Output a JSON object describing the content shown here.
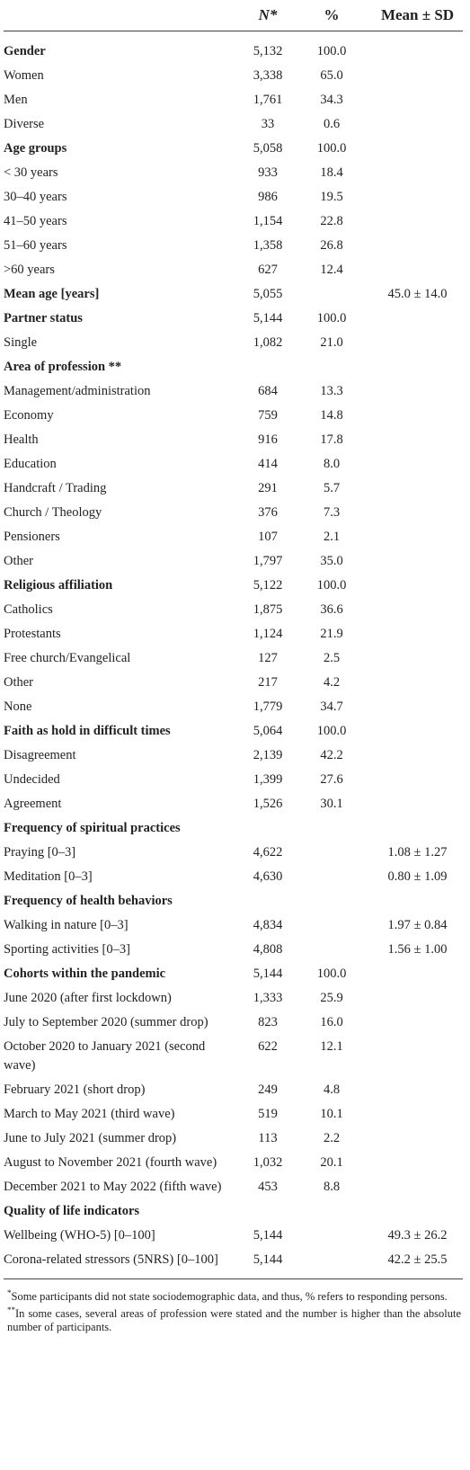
{
  "table": {
    "columns": [
      "N*",
      "%",
      "Mean ± SD"
    ],
    "sections": [
      {
        "title": "Gender",
        "n": "5,132",
        "pct": "100.0",
        "rows": [
          {
            "label": "Women",
            "n": "3,338",
            "pct": "65.0"
          },
          {
            "label": "Men",
            "n": "1,761",
            "pct": "34.3"
          },
          {
            "label": "Diverse",
            "n": "33",
            "pct": "0.6"
          }
        ]
      },
      {
        "title": "Age groups",
        "n": "5,058",
        "pct": "100.0",
        "rows": [
          {
            "label": "< 30 years",
            "n": "933",
            "pct": "18.4"
          },
          {
            "label": "30–40 years",
            "n": "986",
            "pct": "19.5"
          },
          {
            "label": "41–50 years",
            "n": "1,154",
            "pct": "22.8"
          },
          {
            "label": "51–60 years",
            "n": "1,358",
            "pct": "26.8"
          },
          {
            "label": ">60 years",
            "n": "627",
            "pct": "12.4"
          }
        ]
      },
      {
        "title": "Mean age [years]",
        "n": "5,055",
        "mean": "45.0 ± 14.0",
        "rows": []
      },
      {
        "title": "Partner status",
        "n": "5,144",
        "pct": "100.0",
        "rows": [
          {
            "label": "Single",
            "n": "1,082",
            "pct": "21.0"
          }
        ]
      },
      {
        "title": "Area of profession **",
        "rows": [
          {
            "label": "Management/administration",
            "n": "684",
            "pct": "13.3"
          },
          {
            "label": "Economy",
            "n": "759",
            "pct": "14.8"
          },
          {
            "label": "Health",
            "n": "916",
            "pct": "17.8"
          },
          {
            "label": "Education",
            "n": "414",
            "pct": "8.0"
          },
          {
            "label": "Handcraft / Trading",
            "n": "291",
            "pct": "5.7"
          },
          {
            "label": "Church / Theology",
            "n": "376",
            "pct": "7.3"
          },
          {
            "label": "Pensioners",
            "n": "107",
            "pct": "2.1"
          },
          {
            "label": "Other",
            "n": "1,797",
            "pct": "35.0"
          }
        ]
      },
      {
        "title": "Religious affiliation",
        "n": "5,122",
        "pct": "100.0",
        "rows": [
          {
            "label": "Catholics",
            "n": "1,875",
            "pct": "36.6"
          },
          {
            "label": "Protestants",
            "n": "1,124",
            "pct": "21.9"
          },
          {
            "label": "Free church/Evangelical",
            "n": "127",
            "pct": "2.5"
          },
          {
            "label": "Other",
            "n": "217",
            "pct": "4.2"
          },
          {
            "label": "None",
            "n": "1,779",
            "pct": "34.7"
          }
        ]
      },
      {
        "title": "Faith as hold in difficult times",
        "n": "5,064",
        "pct": "100.0",
        "rows": [
          {
            "label": "Disagreement",
            "n": "2,139",
            "pct": "42.2"
          },
          {
            "label": "Undecided",
            "n": "1,399",
            "pct": "27.6"
          },
          {
            "label": "Agreement",
            "n": "1,526",
            "pct": "30.1"
          }
        ]
      },
      {
        "title": "Frequency of spiritual practices",
        "rows": [
          {
            "label": "Praying [0–3]",
            "n": "4,622",
            "mean": "1.08 ± 1.27"
          },
          {
            "label": "Meditation [0–3]",
            "n": "4,630",
            "mean": "0.80 ± 1.09"
          }
        ]
      },
      {
        "title": "Frequency of health behaviors",
        "rows": [
          {
            "label": "Walking in nature [0–3]",
            "n": "4,834",
            "mean": "1.97 ± 0.84"
          },
          {
            "label": "Sporting activities [0–3]",
            "n": "4,808",
            "mean": "1.56 ± 1.00"
          }
        ]
      },
      {
        "title": "Cohorts within the pandemic",
        "n": "5,144",
        "pct": "100.0",
        "rows": [
          {
            "label": "June 2020 (after first lockdown)",
            "n": "1,333",
            "pct": "25.9"
          },
          {
            "label": "July to September 2020 (summer drop)",
            "n": "823",
            "pct": "16.0"
          },
          {
            "label": "October 2020 to January 2021 (second wave)",
            "n": "622",
            "pct": "12.1"
          },
          {
            "label": "February 2021 (short drop)",
            "n": "249",
            "pct": "4.8"
          },
          {
            "label": "March to May 2021 (third wave)",
            "n": "519",
            "pct": "10.1"
          },
          {
            "label": "June to July 2021 (summer drop)",
            "n": "113",
            "pct": "2.2"
          },
          {
            "label": "August to November 2021 (fourth wave)",
            "n": "1,032",
            "pct": "20.1"
          },
          {
            "label": "December 2021 to May 2022 (fifth wave)",
            "n": "453",
            "pct": "8.8"
          }
        ]
      },
      {
        "title": "Quality of life indicators",
        "rows": [
          {
            "label": "Wellbeing (WHO-5) [0–100]",
            "n": "5,144",
            "mean": "49.3 ± 26.2"
          },
          {
            "label": "Corona-related stressors (5NRS) [0–100]",
            "n": "5,144",
            "mean": "42.2 ± 25.5"
          }
        ]
      }
    ],
    "footnotes": [
      {
        "mark": "*",
        "text": "Some participants did not state sociodemographic data, and thus, % refers to responding persons."
      },
      {
        "mark": "**",
        "text": "In some cases, several areas of profession were stated and the number is higher than the absolute number of participants."
      }
    ]
  }
}
